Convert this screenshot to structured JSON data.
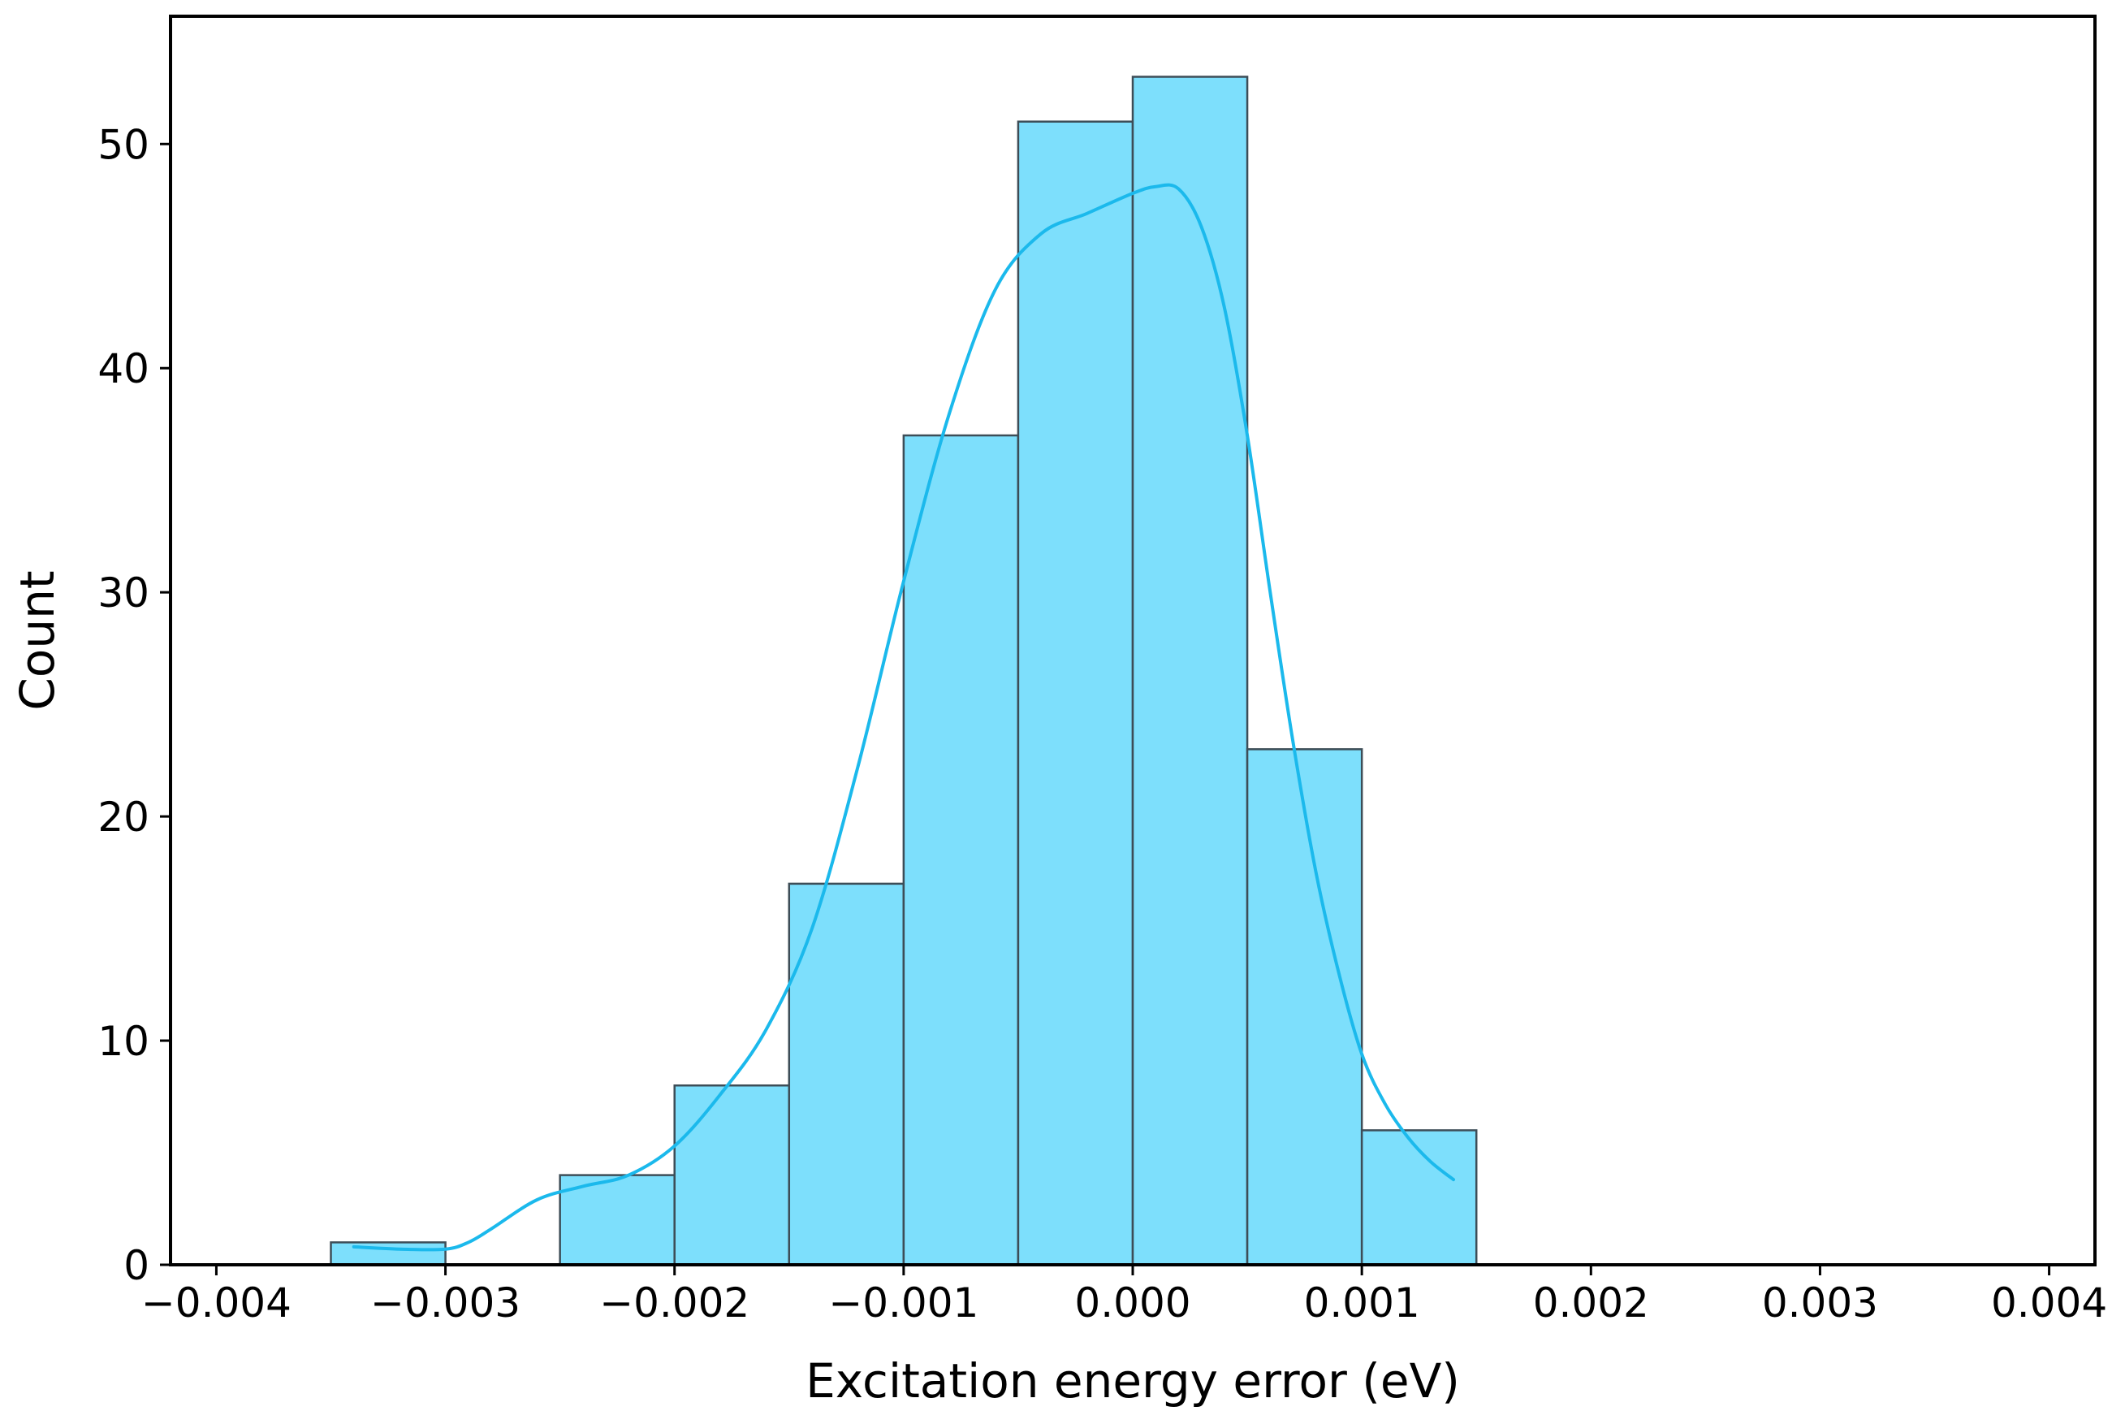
{
  "chart_data": {
    "type": "bar",
    "subtype": "histogram-with-kde",
    "title": "",
    "xlabel": "Excitation energy error (eV)",
    "ylabel": "Count",
    "xlim": [
      -0.0042,
      0.0042
    ],
    "ylim": [
      0,
      55.7
    ],
    "x_ticks": [
      -0.004,
      -0.003,
      -0.002,
      -0.001,
      0.0,
      0.001,
      0.002,
      0.003,
      0.004
    ],
    "x_tick_labels": [
      "−0.004",
      "−0.003",
      "−0.002",
      "−0.001",
      "0.000",
      "0.001",
      "0.002",
      "0.003",
      "0.004"
    ],
    "y_ticks": [
      0,
      10,
      20,
      30,
      40,
      50
    ],
    "y_tick_labels": [
      "0",
      "10",
      "20",
      "30",
      "40",
      "50"
    ],
    "grid": false,
    "legend": "none",
    "bins": [
      {
        "x0": -0.0035,
        "x1": -0.003,
        "count": 1
      },
      {
        "x0": -0.003,
        "x1": -0.0025,
        "count": 0
      },
      {
        "x0": -0.0025,
        "x1": -0.002,
        "count": 4
      },
      {
        "x0": -0.002,
        "x1": -0.0015,
        "count": 8
      },
      {
        "x0": -0.0015,
        "x1": -0.001,
        "count": 17
      },
      {
        "x0": -0.001,
        "x1": -0.0005,
        "count": 37
      },
      {
        "x0": -0.0005,
        "x1": 0.0,
        "count": 51
      },
      {
        "x0": 0.0,
        "x1": 0.0005,
        "count": 53
      },
      {
        "x0": 0.0005,
        "x1": 0.001,
        "count": 23
      },
      {
        "x0": 0.001,
        "x1": 0.0015,
        "count": 6
      }
    ],
    "kde": {
      "x": [
        -0.0034,
        -0.0032,
        -0.003,
        -0.0029,
        -0.0028,
        -0.0026,
        -0.0024,
        -0.0022,
        -0.002,
        -0.0018,
        -0.0016,
        -0.0014,
        -0.0012,
        -0.001,
        -0.0008,
        -0.0006,
        -0.0004,
        -0.0002,
        0.0,
        0.0001,
        0.0002,
        0.0003,
        0.0004,
        0.0005,
        0.0006,
        0.0007,
        0.0008,
        0.0009,
        0.001,
        0.0011,
        0.0012,
        0.0013,
        0.0014
      ],
      "y": [
        0.8,
        0.7,
        0.7,
        1.0,
        1.6,
        2.9,
        3.5,
        4.0,
        5.3,
        7.6,
        10.5,
        15.0,
        22.2,
        30.5,
        38.0,
        43.5,
        46.0,
        46.9,
        47.8,
        48.1,
        48.0,
        46.3,
        42.7,
        37.0,
        30.0,
        23.3,
        17.5,
        13.0,
        9.4,
        7.2,
        5.7,
        4.6,
        3.8
      ]
    },
    "colors": {
      "bar_fill": "#7ddffc",
      "bar_edge": "#3d4d57",
      "kde_line": "#1bb9ec",
      "axes": "#000000"
    }
  }
}
